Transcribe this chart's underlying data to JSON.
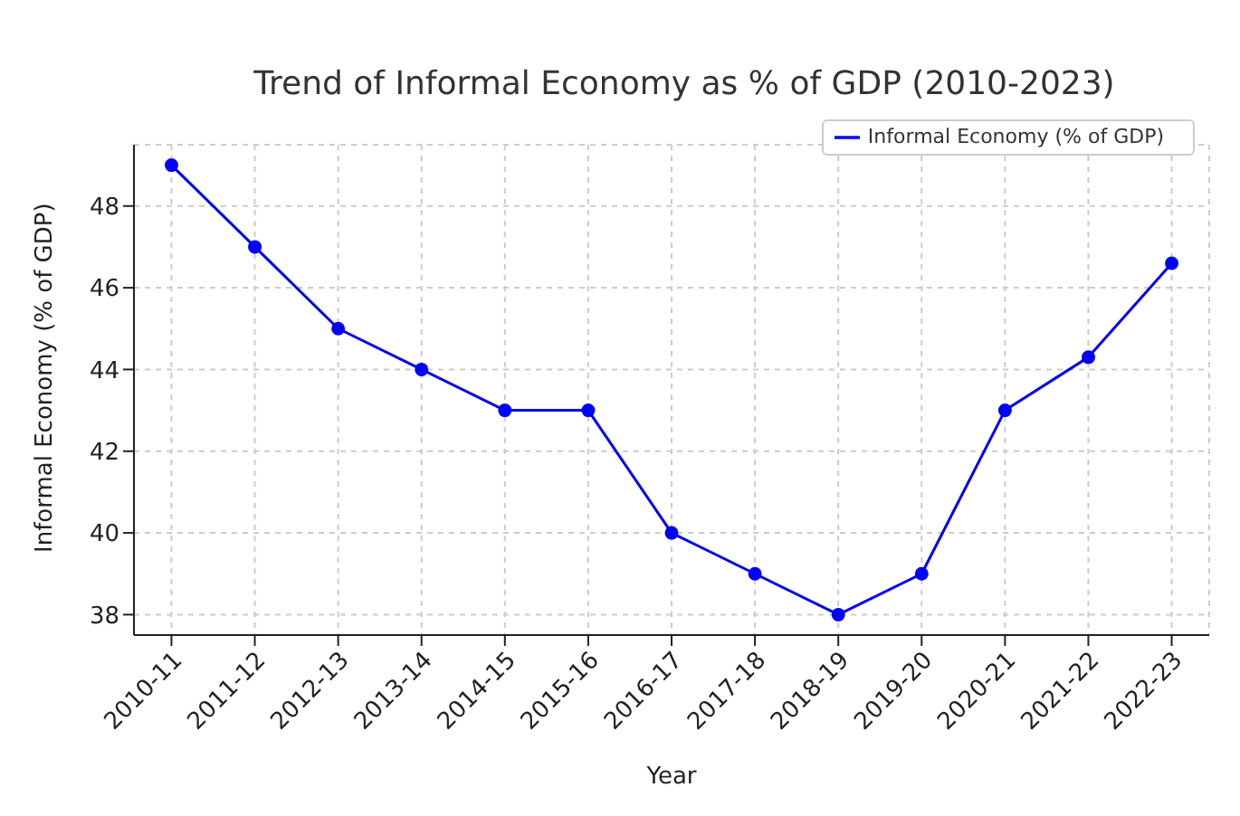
{
  "chart_data": {
    "type": "line",
    "title": "Trend of Informal Economy as % of GDP (2010-2023)",
    "xlabel": "Year",
    "ylabel": "Informal Economy (% of GDP)",
    "categories": [
      "2010-11",
      "2011-12",
      "2012-13",
      "2013-14",
      "2014-15",
      "2015-16",
      "2016-17",
      "2017-18",
      "2018-19",
      "2019-20",
      "2020-21",
      "2021-22",
      "2022-23"
    ],
    "series": [
      {
        "name": "Informal Economy (% of GDP)",
        "color": "#0000ff",
        "values": [
          49,
          47,
          45,
          44,
          43,
          43,
          40,
          39,
          38,
          39,
          43,
          44.3,
          46.6
        ]
      }
    ],
    "ylim": [
      37.5,
      49.5
    ],
    "yticks": [
      38,
      40,
      42,
      44,
      46,
      48
    ],
    "grid": true,
    "legend": "top right",
    "marker": "circle",
    "line_style": "solid"
  }
}
